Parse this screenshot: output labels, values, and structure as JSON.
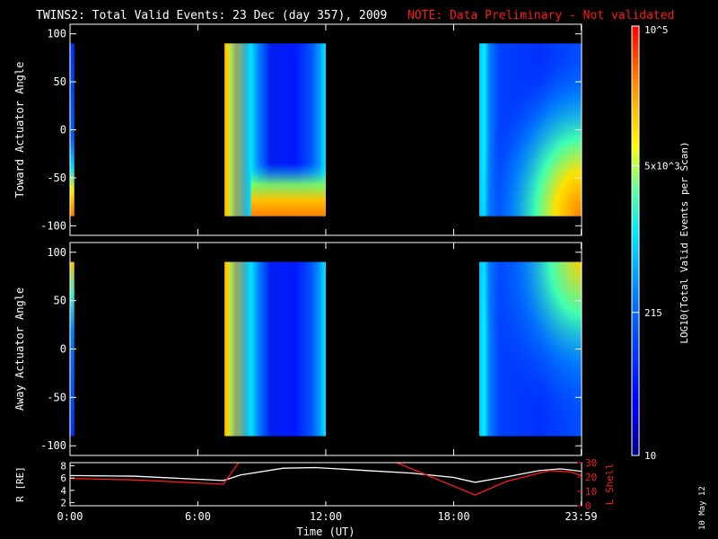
{
  "header": {
    "title": "TWINS2: Total Valid Events: 23 Dec (day 357), 2009",
    "note": "NOTE: Data Preliminary - Not validated"
  },
  "footer": {
    "date_stamp": "10 May 12"
  },
  "colorbar": {
    "label": "LOG10(Total Valid Events per Scan)",
    "ticks": [
      {
        "label": "10",
        "value": 10
      },
      {
        "label": "215",
        "value": 215
      },
      {
        "label": "5x10^3",
        "value": 5000
      },
      {
        "label": "10^5",
        "value": 100000
      }
    ],
    "colors": [
      "#0000a0",
      "#0000ff",
      "#0080ff",
      "#00ffff",
      "#80ff80",
      "#ffff00",
      "#ff8000",
      "#ff0000"
    ]
  },
  "chart_data": [
    {
      "type": "heatmap",
      "title": "TWINS2: Total Valid Events: 23 Dec (day 357), 2009",
      "ylabel": "Toward Actuator Angle",
      "ylim": [
        -110,
        110
      ],
      "y_ticks": [
        "100",
        "50",
        "0",
        "-50",
        "-100"
      ],
      "y_tick_values": [
        100,
        50,
        0,
        -50,
        -100
      ],
      "x_range_hours": [
        0,
        24
      ],
      "angle_range": [
        -90,
        90
      ],
      "blocks": [
        {
          "start": "00:00",
          "end": "00:12",
          "start_h": 0.0,
          "end_h": 0.2
        },
        {
          "start": "07:15",
          "end": "12:00",
          "start_h": 7.25,
          "end_h": 12.0
        },
        {
          "start": "19:12",
          "end": "23:59",
          "start_h": 19.2,
          "end_h": 23.98
        }
      ]
    },
    {
      "type": "heatmap",
      "ylabel": "Away Actuator Angle",
      "ylim": [
        -110,
        110
      ],
      "y_ticks": [
        "100",
        "50",
        "0",
        "-50",
        "-100"
      ],
      "y_tick_values": [
        100,
        50,
        0,
        -50,
        -100
      ],
      "x_range_hours": [
        0,
        24
      ],
      "angle_range": [
        -90,
        90
      ],
      "blocks": [
        {
          "start": "00:00",
          "end": "00:12",
          "start_h": 0.0,
          "end_h": 0.2
        },
        {
          "start": "07:15",
          "end": "12:00",
          "start_h": 7.25,
          "end_h": 12.0
        },
        {
          "start": "19:12",
          "end": "23:59",
          "start_h": 19.2,
          "end_h": 23.98
        }
      ]
    },
    {
      "type": "line",
      "ylabel_left": "R [RE]",
      "ylabel_right": "L Shell",
      "xlabel": "Time (UT)",
      "x_ticks": [
        "0:00",
        "6:00",
        "12:00",
        "18:00",
        "23:59"
      ],
      "x_tick_values": [
        0,
        6,
        12,
        18,
        23.98
      ],
      "y_left_ticks": [
        "8",
        "6",
        "4",
        "2"
      ],
      "y_left_values": [
        8,
        6,
        4,
        2
      ],
      "y_left_lim": [
        1.5,
        8.5
      ],
      "y_right_ticks": [
        "30",
        "20",
        "10",
        "0"
      ],
      "y_right_values": [
        30,
        20,
        10,
        0
      ],
      "y_right_lim": [
        0,
        30
      ],
      "series": [
        {
          "name": "R [RE]",
          "axis": "left",
          "color": "#ffffff",
          "x": [
            0,
            3,
            7.2,
            8,
            10,
            11.5,
            14,
            16,
            18,
            19,
            20.5,
            22,
            23,
            23.98
          ],
          "y": [
            6.4,
            6.3,
            5.6,
            6.5,
            7.6,
            7.7,
            7.2,
            6.8,
            6.1,
            5.3,
            6.2,
            7.2,
            7.5,
            7.1
          ]
        },
        {
          "name": "L Shell",
          "axis": "right",
          "color": "#ff1a1a",
          "x": [
            0,
            3,
            7.2,
            8.0,
            15.0,
            19.0,
            20.5,
            22.5,
            23.5,
            23.98
          ],
          "y": [
            19,
            18,
            15,
            32,
            32,
            7.5,
            17,
            24.5,
            23.5,
            21
          ]
        }
      ]
    }
  ]
}
